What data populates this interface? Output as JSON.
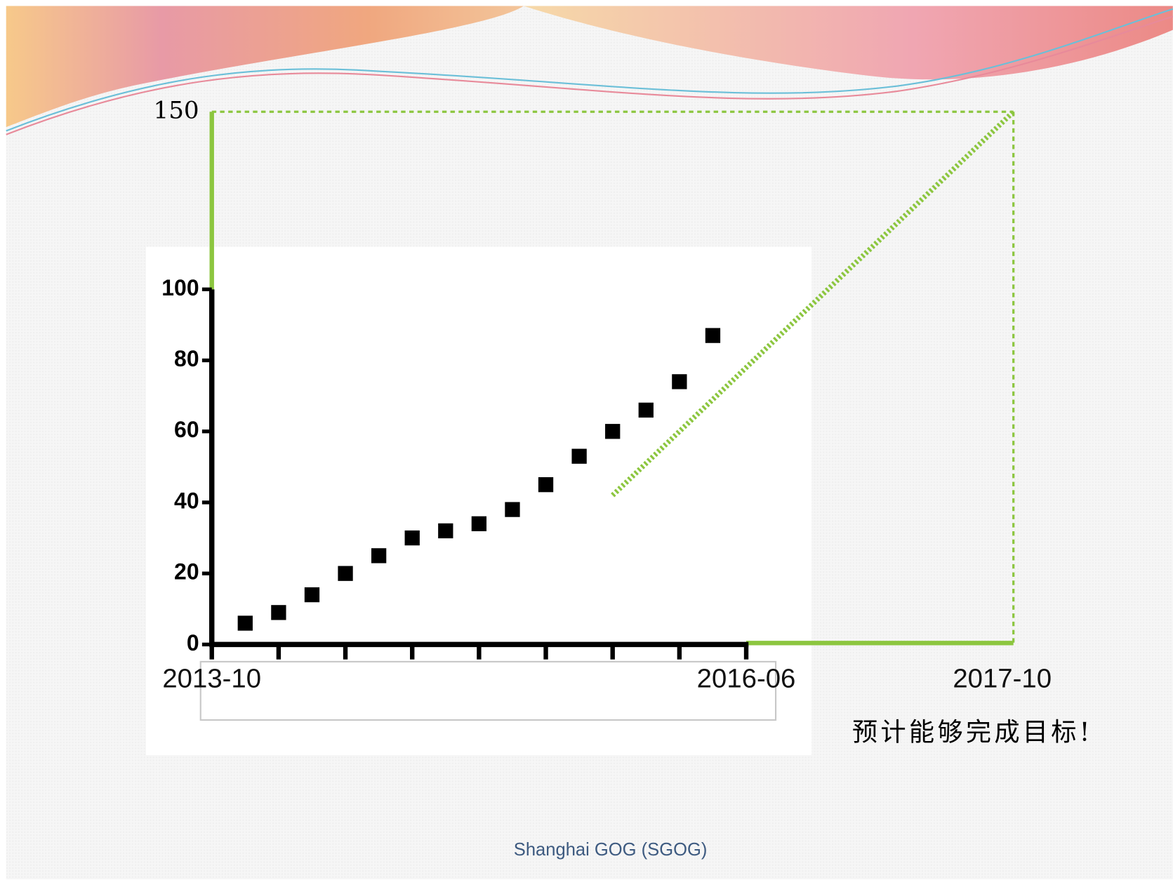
{
  "annotation": "预计能够完成目标!",
  "footer": "Shanghai GOG (SGOG)",
  "chart_data": {
    "type": "scatter",
    "x": [
      "2013-12",
      "2014-02",
      "2014-04",
      "2014-06",
      "2014-08",
      "2014-10",
      "2014-12",
      "2015-02",
      "2015-04",
      "2015-06",
      "2015-08",
      "2015-10",
      "2015-12",
      "2016-02",
      "2016-04"
    ],
    "values": [
      6,
      9,
      14,
      20,
      25,
      30,
      32,
      34,
      38,
      45,
      53,
      60,
      66,
      74,
      87
    ],
    "color": "#000000",
    "xticks": [
      {
        "value": "2013-10",
        "label": "2013-10"
      },
      {
        "value": "2014-02",
        "label": null
      },
      {
        "value": "2014-06",
        "label": null
      },
      {
        "value": "2014-10",
        "label": null
      },
      {
        "value": "2015-02",
        "label": null
      },
      {
        "value": "2015-06",
        "label": null
      },
      {
        "value": "2015-10",
        "label": null
      },
      {
        "value": "2016-02",
        "label": null
      },
      {
        "value": "2016-06",
        "label": "2016-06"
      }
    ],
    "ylim": [
      0,
      150
    ],
    "yticks": [
      0,
      20,
      40,
      60,
      80,
      100,
      150
    ],
    "trend": {
      "x": [
        "2015-10",
        "2017-10"
      ],
      "values": [
        42,
        150
      ],
      "color": "#8cc63f"
    },
    "target": {
      "x": "2017-10",
      "y": 150,
      "color": "#8cc63f"
    }
  }
}
